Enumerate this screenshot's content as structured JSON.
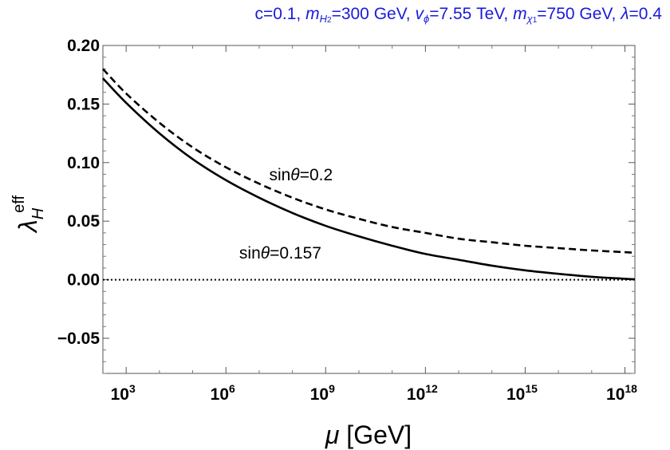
{
  "title": {
    "c": "c=0.1, ",
    "mh2_sym": "m",
    "mh2_sub": "H",
    "mh2_subsub": "2",
    "mh2_val": "=300 GeV, ",
    "vphi_sym": "v",
    "vphi_sub": "ϕ",
    "vphi_val": "=7.55 TeV, ",
    "mchi_sym": "m",
    "mchi_sub": "χ",
    "mchi_subsub": "1",
    "mchi_val": "=750 GeV, ",
    "lambda_sym": "λ",
    "lambda_val": "=0.4",
    "color": "#1a1adb"
  },
  "chart_data": {
    "type": "line",
    "title": "c=0.1, m_H2=300 GeV, v_phi=7.55 TeV, m_chi1=750 GeV, lambda=0.4",
    "xlabel": "μ [GeV]",
    "ylabel": "λ_H^eff",
    "xscale": "log10",
    "xlim_log10": [
      2.3,
      18.3
    ],
    "ylim": [
      -0.08,
      0.2
    ],
    "xticks": [
      {
        "value_log10": 3,
        "base": "10",
        "exp": "3"
      },
      {
        "value_log10": 6,
        "base": "10",
        "exp": "6"
      },
      {
        "value_log10": 9,
        "base": "10",
        "exp": "9"
      },
      {
        "value_log10": 12,
        "base": "10",
        "exp": "12"
      },
      {
        "value_log10": 15,
        "base": "10",
        "exp": "15"
      },
      {
        "value_log10": 18,
        "base": "10",
        "exp": "18"
      }
    ],
    "yticks": [
      {
        "value": 0.2,
        "label": "0.20"
      },
      {
        "value": 0.15,
        "label": "0.15"
      },
      {
        "value": 0.1,
        "label": "0.10"
      },
      {
        "value": 0.05,
        "label": "0.05"
      },
      {
        "value": 0.0,
        "label": "0.00"
      },
      {
        "value": -0.05,
        "label": "−0.05"
      }
    ],
    "series": [
      {
        "name": "sinθ=0.157",
        "style": "solid",
        "color": "#000000",
        "x_log10": [
          2.3,
          3,
          4,
          5,
          6,
          7,
          8,
          9,
          10,
          11,
          12,
          13,
          14,
          15,
          16,
          17,
          18,
          18.3
        ],
        "y": [
          0.172,
          0.151,
          0.125,
          0.103,
          0.085,
          0.07,
          0.057,
          0.046,
          0.037,
          0.029,
          0.022,
          0.017,
          0.012,
          0.008,
          0.005,
          0.0025,
          0.0008,
          0.0003
        ]
      },
      {
        "name": "sinθ=0.2",
        "style": "dashed",
        "color": "#000000",
        "x_log10": [
          2.3,
          3,
          4,
          5,
          6,
          7,
          8,
          9,
          10,
          11,
          12,
          13,
          14,
          15,
          16,
          17,
          18,
          18.3
        ],
        "y": [
          0.18,
          0.159,
          0.134,
          0.113,
          0.096,
          0.082,
          0.07,
          0.06,
          0.052,
          0.045,
          0.04,
          0.035,
          0.032,
          0.029,
          0.027,
          0.025,
          0.0235,
          0.023
        ]
      },
      {
        "name": "zero",
        "style": "dotted",
        "color": "#000000",
        "x_log10": [
          2.3,
          18.3
        ],
        "y": [
          0,
          0
        ]
      }
    ],
    "annotations": [
      {
        "prefix": "sin",
        "theta": "θ",
        "value": "=0.2",
        "x_log10": 7.3,
        "y": 0.085
      },
      {
        "prefix": "sin",
        "theta": "θ",
        "value": "=0.157",
        "x_log10": 6.4,
        "y": 0.018
      }
    ],
    "ylabel_parts": {
      "lambda": "λ",
      "sub": "H",
      "sup": "eff"
    },
    "xlabel_parts": {
      "mu": "μ",
      "unit": " [GeV]"
    }
  }
}
